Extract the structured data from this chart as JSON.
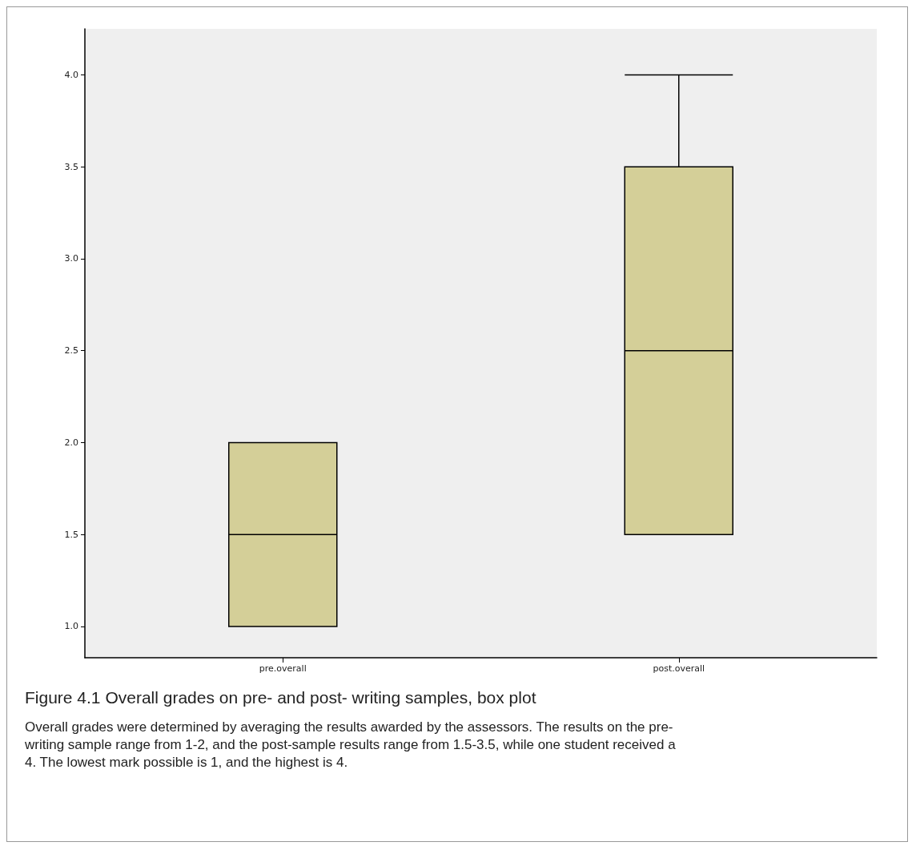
{
  "chart_data": {
    "type": "box",
    "title": "Figure 4.1 Overall grades on pre- and post- writing samples, box plot",
    "annotations": [
      "Overall grades were determined by averaging the results awarded by the assessors. The results on the pre- writing sample range from 1-2, and the post-sample results range from 1.5-3.5, while one student received a 4. The lowest mark possible is 1, and the highest is 4."
    ],
    "categories": [
      "pre.overall",
      "post.overall"
    ],
    "boxes": [
      {
        "low": 1,
        "q1": 1,
        "median": 1.5,
        "q3": 2,
        "high": 2
      },
      {
        "low": 1.5,
        "q1": 1.5,
        "median": 2.5,
        "q3": 3.5,
        "high": 4
      }
    ],
    "color": "#d4cf98",
    "ylim": [
      0.83,
      4.25
    ],
    "yticks": [
      {
        "value": 1,
        "label": "1.0"
      },
      {
        "value": 1.5,
        "label": "1.5"
      },
      {
        "value": 2,
        "label": "2.0"
      },
      {
        "value": 2.5,
        "label": "2.5"
      },
      {
        "value": 3,
        "label": "3.0"
      },
      {
        "value": 3.5,
        "label": "3.5"
      },
      {
        "value": 4,
        "label": "4.0"
      }
    ]
  }
}
